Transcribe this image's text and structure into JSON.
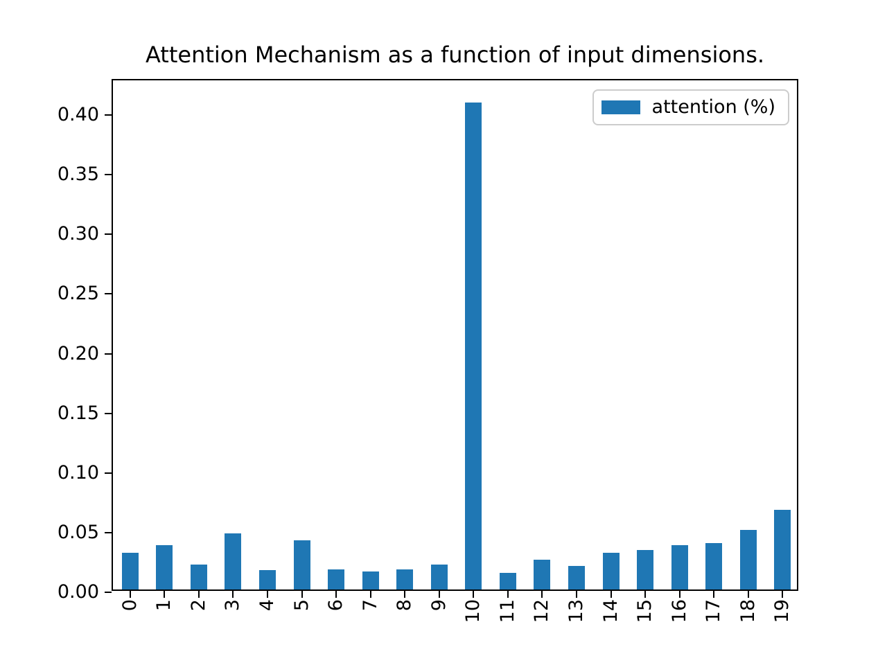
{
  "figure": {
    "background_color": "#ffffff",
    "axis_color": "#000000",
    "legend_border_color": "#cccccc"
  },
  "chart_data": {
    "type": "bar",
    "title": "Attention Mechanism as a function of input dimensions.",
    "xlabel": "",
    "ylabel": "",
    "categories": [
      "0",
      "1",
      "2",
      "3",
      "4",
      "5",
      "6",
      "7",
      "8",
      "9",
      "10",
      "11",
      "12",
      "13",
      "14",
      "15",
      "16",
      "17",
      "18",
      "19"
    ],
    "series": [
      {
        "name": "attention (%)",
        "values": [
          0.031,
          0.037,
          0.021,
          0.047,
          0.016,
          0.041,
          0.017,
          0.015,
          0.017,
          0.021,
          0.408,
          0.014,
          0.025,
          0.02,
          0.031,
          0.033,
          0.037,
          0.039,
          0.05,
          0.067
        ],
        "color": "#1f77b4"
      }
    ],
    "ylim": [
      0,
      0.429
    ],
    "ytick_values": [
      0.0,
      0.05,
      0.1,
      0.15,
      0.2,
      0.25,
      0.3,
      0.35,
      0.4
    ],
    "ytick_labels": [
      "0.00",
      "0.05",
      "0.10",
      "0.15",
      "0.20",
      "0.25",
      "0.30",
      "0.35",
      "0.40"
    ],
    "xtick_rotation_deg": 90,
    "grid": false,
    "legend": {
      "label": "attention (%)",
      "position": "upper right"
    }
  }
}
